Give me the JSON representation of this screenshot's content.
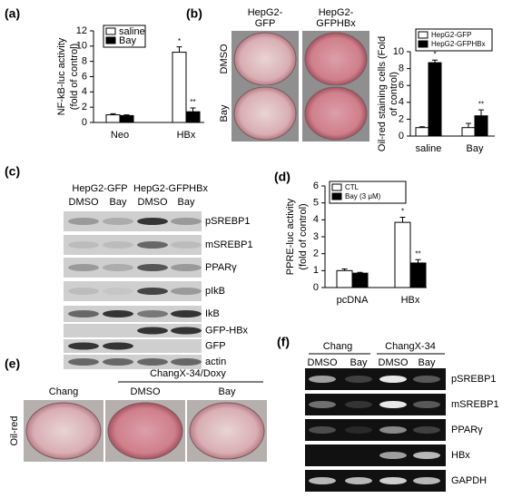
{
  "chart_data": [
    {
      "type": "bar",
      "label": "(a)",
      "ylabel": [
        "NF-kB-luc activity",
        "(fold of control)"
      ],
      "categories": [
        "Neo",
        "HBx"
      ],
      "ylim": [
        0,
        12
      ],
      "yticks": [
        0,
        2,
        4,
        6,
        8,
        10,
        12
      ],
      "legend": "top-left",
      "series": [
        {
          "name": "saline",
          "color": "#ffffff",
          "values": [
            1.0,
            9.2
          ],
          "errors": [
            0.15,
            0.7
          ],
          "annotations": [
            null,
            "*"
          ]
        },
        {
          "name": "Bay",
          "color": "#000000",
          "values": [
            0.9,
            1.4
          ],
          "errors": [
            0.1,
            0.5
          ],
          "annotations": [
            null,
            "**"
          ]
        }
      ]
    },
    {
      "type": "bar",
      "label": "(b)",
      "ylabel": [
        "Oil-red staining cells (Fold",
        "of control)"
      ],
      "categories": [
        "saline",
        "Bay"
      ],
      "ylim": [
        0,
        10
      ],
      "yticks": [
        0,
        2,
        4,
        6,
        8,
        10
      ],
      "legend": "top",
      "series": [
        {
          "name": "HepG2-GFP",
          "color": "#ffffff",
          "values": [
            1.0,
            1.0
          ],
          "errors": [
            0.1,
            0.5
          ],
          "annotations": [
            null,
            null
          ]
        },
        {
          "name": "HepG2-GFPHBx",
          "color": "#000000",
          "values": [
            8.7,
            2.4
          ],
          "errors": [
            0.3,
            0.7
          ],
          "annotations": [
            "*",
            "**"
          ]
        }
      ]
    },
    {
      "type": "bar",
      "label": "(d)",
      "ylabel": [
        "PPRE-luc activity",
        "(fold of control)"
      ],
      "categories": [
        "pcDNA",
        "HBx"
      ],
      "ylim": [
        0,
        6
      ],
      "yticks": [
        0,
        1,
        2,
        3,
        4,
        5,
        6
      ],
      "legend": "top-left",
      "series": [
        {
          "name": "CTL",
          "color": "#ffffff",
          "values": [
            1.0,
            3.85
          ],
          "errors": [
            0.1,
            0.3
          ],
          "annotations": [
            null,
            "*"
          ]
        },
        {
          "name": "Bay (3 μM)",
          "color": "#000000",
          "values": [
            0.85,
            1.45
          ],
          "errors": [
            0.05,
            0.2
          ],
          "annotations": [
            null,
            "**"
          ]
        }
      ]
    }
  ],
  "panel_b_images": {
    "columns": [
      [
        "HepG2-",
        "GFP"
      ],
      [
        "HepG2-",
        "GFPHBx"
      ]
    ],
    "rows": [
      "DMSO",
      "Bay"
    ]
  },
  "panel_c": {
    "label": "(c)",
    "groups": [
      "HepG2-GFP",
      "HepG2-GFPHBx"
    ],
    "lanes": [
      "DMSO",
      "Bay",
      "DMSO",
      "Bay"
    ],
    "rows": [
      "pSREBP1",
      "mSREBP1",
      "PPARγ",
      "pIkB",
      "IkB",
      "GFP-HBx",
      "GFP",
      "actin"
    ]
  },
  "panel_e": {
    "label": "(e)",
    "group": "ChangX-34/Doxy",
    "columns": [
      "Chang",
      "DMSO",
      "Bay"
    ],
    "row": "Oil-red"
  },
  "panel_f": {
    "label": "(f)",
    "groups": [
      "Chang",
      "ChangX-34"
    ],
    "lanes": [
      "DMSO",
      "Bay",
      "DMSO",
      "Bay"
    ],
    "rows": [
      "pSREBP1",
      "mSREBP1",
      "PPARγ",
      "HBx",
      "GAPDH"
    ]
  }
}
